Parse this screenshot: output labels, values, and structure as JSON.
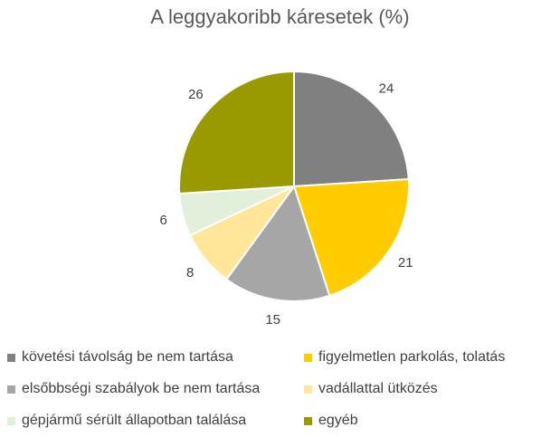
{
  "chart_data": {
    "type": "pie",
    "title": "A leggyakoribb káresetek (%)",
    "slices": [
      {
        "label": "követési távolság be nem tartása",
        "value": 24,
        "color": "#808080"
      },
      {
        "label": "figyelmetlen parkolás, tolatás",
        "value": 21,
        "color": "#FFCC00"
      },
      {
        "label": "elsőbbségi szabályok be nem tartása",
        "value": 15,
        "color": "#A6A6A6"
      },
      {
        "label": "vadállattal ütközés",
        "value": 8,
        "color": "#FFE699"
      },
      {
        "label": "gépjármű sérült állapotban találása",
        "value": 6,
        "color": "#E2EFDA"
      },
      {
        "label": "egyéb",
        "value": 26,
        "color": "#999900"
      }
    ],
    "legend_position": "bottom"
  }
}
